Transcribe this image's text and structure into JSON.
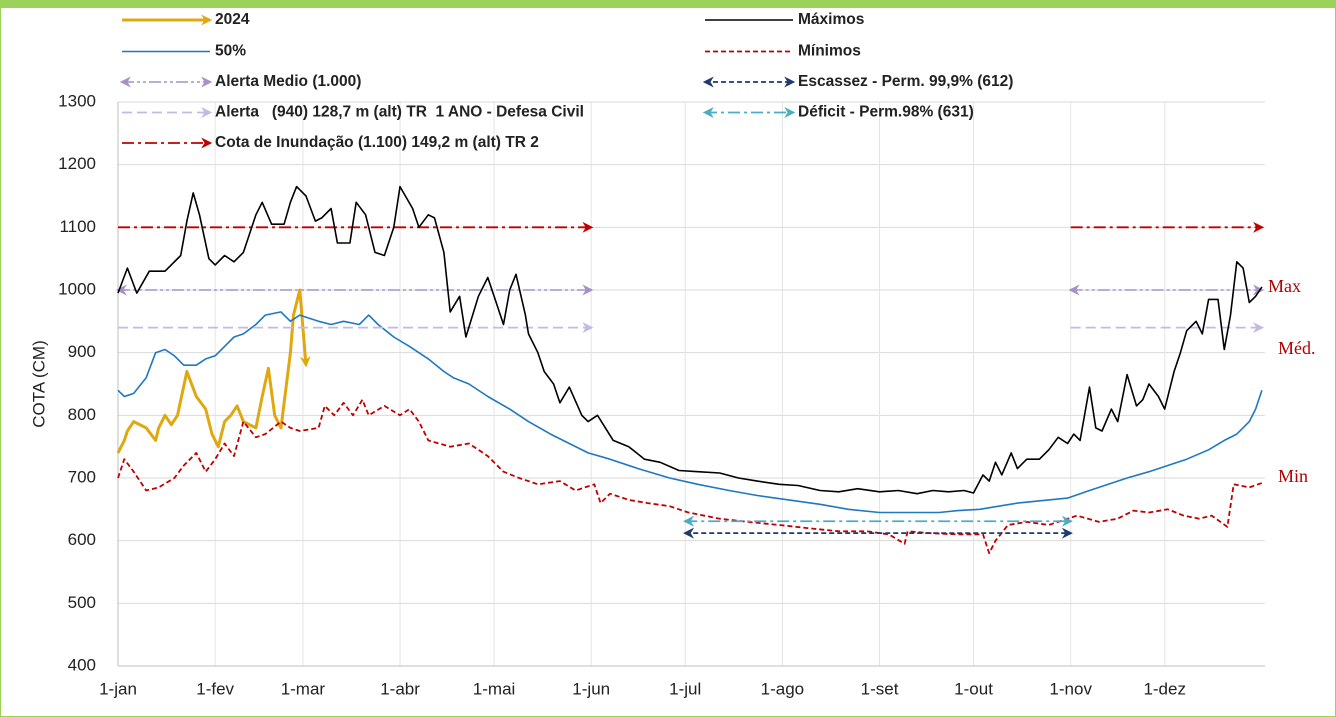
{
  "chart_data": {
    "type": "line",
    "ylabel": "COTA (CM)",
    "ylim": [
      400,
      1300
    ],
    "yticks": [
      400,
      500,
      600,
      700,
      800,
      900,
      1000,
      1100,
      1200,
      1300
    ],
    "xlim": [
      0,
      366
    ],
    "xticks": [
      {
        "value": 0,
        "label": "1-jan"
      },
      {
        "value": 31,
        "label": "1-fev"
      },
      {
        "value": 59,
        "label": "1-mar"
      },
      {
        "value": 90,
        "label": "1-abr"
      },
      {
        "value": 120,
        "label": "1-mai"
      },
      {
        "value": 151,
        "label": "1-jun"
      },
      {
        "value": 181,
        "label": "1-jul"
      },
      {
        "value": 212,
        "label": "1-ago"
      },
      {
        "value": 243,
        "label": "1-set"
      },
      {
        "value": 273,
        "label": "1-out"
      },
      {
        "value": 304,
        "label": "1-nov"
      },
      {
        "value": 334,
        "label": "1-dez"
      }
    ],
    "grid": true,
    "annotations": [
      "Max",
      "Méd.",
      "Min"
    ],
    "series": [
      {
        "name": "2024",
        "color": "#e0a810",
        "dash": "solid",
        "width": 3,
        "arrow": "end",
        "x": [
          0,
          2,
          3,
          5,
          9,
          12,
          13,
          15,
          17,
          19,
          22,
          25,
          28,
          30,
          32,
          34,
          36,
          38,
          40,
          44,
          46,
          48,
          50,
          52,
          55,
          56,
          58,
          60
        ],
        "values": [
          740,
          760,
          775,
          790,
          780,
          760,
          780,
          800,
          785,
          800,
          870,
          830,
          810,
          770,
          750,
          790,
          800,
          815,
          790,
          780,
          830,
          875,
          800,
          780,
          900,
          960,
          1000,
          880
        ]
      },
      {
        "name": "50%",
        "color": "#1f78c1",
        "dash": "solid",
        "width": 1.6,
        "x": [
          0,
          2,
          5,
          9,
          12,
          15,
          18,
          21,
          25,
          28,
          31,
          34,
          37,
          40,
          44,
          47,
          52,
          55,
          58,
          61,
          64,
          68,
          72,
          77,
          80,
          83,
          88,
          93,
          96,
          99,
          104,
          107,
          112,
          118,
          125,
          131,
          138,
          144,
          150,
          157,
          166,
          176,
          185,
          195,
          204,
          214,
          224,
          233,
          243,
          252,
          262,
          268,
          275,
          281,
          287,
          297,
          303,
          310,
          316,
          322,
          329,
          335,
          341,
          348,
          353,
          357,
          361,
          363,
          365
        ],
        "values": [
          840,
          830,
          835,
          860,
          900,
          905,
          895,
          880,
          880,
          890,
          895,
          910,
          925,
          930,
          945,
          960,
          965,
          950,
          960,
          955,
          950,
          945,
          950,
          945,
          960,
          945,
          925,
          910,
          900,
          890,
          870,
          860,
          850,
          830,
          810,
          790,
          770,
          755,
          740,
          730,
          715,
          700,
          690,
          680,
          672,
          665,
          658,
          650,
          645,
          645,
          645,
          648,
          650,
          655,
          660,
          665,
          668,
          680,
          690,
          700,
          710,
          720,
          730,
          745,
          760,
          770,
          790,
          810,
          840
        ]
      },
      {
        "name": "Alerta Medio (1.000)",
        "color": "#a590cc",
        "dash": "dashdotdot",
        "width": 1.6,
        "arrow": "both",
        "value": 1000,
        "segments": [
          [
            0,
            151
          ],
          [
            304,
            365
          ]
        ]
      },
      {
        "name": "Alerta   (940) 128,7 m (alt) TR  1 ANO - Defesa Civil",
        "color": "#c4b8e4",
        "dash": "longdash",
        "width": 1.8,
        "arrow": "end",
        "value": 940,
        "segments": [
          [
            0,
            151
          ],
          [
            304,
            365
          ]
        ]
      },
      {
        "name": "Cota de Inundação (1.100) 149,2 m (alt) TR 2",
        "color": "#c00000",
        "dash": "dashdot",
        "width": 1.8,
        "arrow": "end",
        "value": 1100,
        "segments": [
          [
            0,
            151
          ],
          [
            304,
            365
          ]
        ]
      },
      {
        "name": "Máximos",
        "color": "#000000",
        "dash": "solid",
        "width": 1.6,
        "x": [
          0,
          3,
          6,
          10,
          15,
          20,
          22,
          24,
          26,
          29,
          31,
          34,
          37,
          40,
          44,
          46,
          49,
          53,
          55,
          57,
          60,
          63,
          65,
          68,
          70,
          74,
          76,
          79,
          82,
          85,
          88,
          90,
          94,
          96,
          99,
          101,
          104,
          106,
          109,
          111,
          115,
          118,
          120,
          123,
          125,
          127,
          130,
          131,
          134,
          136,
          139,
          141,
          144,
          148,
          150,
          153,
          158,
          163,
          168,
          173,
          179,
          185,
          192,
          198,
          204,
          211,
          217,
          224,
          230,
          236,
          243,
          249,
          255,
          260,
          265,
          270,
          273,
          276,
          278,
          280,
          282,
          285,
          287,
          290,
          294,
          297,
          300,
          303,
          305,
          307,
          310,
          312,
          314,
          317,
          319,
          322,
          325,
          327,
          329,
          332,
          334,
          337,
          339,
          341,
          344,
          346,
          348,
          351,
          353,
          355,
          357,
          359,
          361,
          363,
          365
        ],
        "values": [
          995,
          1035,
          995,
          1030,
          1030,
          1055,
          1110,
          1155,
          1120,
          1050,
          1040,
          1055,
          1045,
          1060,
          1120,
          1140,
          1105,
          1105,
          1140,
          1165,
          1150,
          1110,
          1115,
          1130,
          1075,
          1075,
          1140,
          1120,
          1060,
          1055,
          1100,
          1165,
          1130,
          1100,
          1120,
          1115,
          1060,
          965,
          990,
          925,
          990,
          1020,
          990,
          945,
          1000,
          1025,
          960,
          930,
          900,
          870,
          850,
          820,
          845,
          800,
          790,
          800,
          760,
          750,
          730,
          725,
          712,
          710,
          708,
          700,
          695,
          690,
          688,
          680,
          678,
          683,
          678,
          680,
          675,
          680,
          678,
          680,
          676,
          705,
          695,
          725,
          705,
          740,
          715,
          730,
          730,
          745,
          765,
          755,
          770,
          760,
          845,
          780,
          775,
          810,
          790,
          865,
          815,
          825,
          850,
          830,
          810,
          870,
          900,
          935,
          950,
          930,
          985,
          985,
          905,
          960,
          1045,
          1035,
          980,
          990,
          1005
        ]
      },
      {
        "name": "Mínimos",
        "color": "#c00000",
        "dash": "dash",
        "width": 1.8,
        "x": [
          0,
          2,
          5,
          9,
          13,
          18,
          21,
          25,
          28,
          31,
          34,
          37,
          40,
          44,
          47,
          52,
          55,
          58,
          64,
          66,
          69,
          72,
          75,
          78,
          80,
          85,
          90,
          93,
          96,
          99,
          106,
          112,
          118,
          123,
          128,
          134,
          141,
          146,
          152,
          154,
          157,
          163,
          169,
          176,
          182,
          192,
          201,
          211,
          220,
          230,
          239,
          246,
          251,
          252,
          259,
          268,
          276,
          278,
          280,
          284,
          290,
          297,
          303,
          306,
          313,
          319,
          324,
          329,
          335,
          340,
          345,
          349,
          354,
          356,
          361,
          365
        ],
        "values": [
          700,
          730,
          710,
          680,
          685,
          700,
          720,
          740,
          710,
          730,
          755,
          735,
          790,
          765,
          770,
          790,
          780,
          775,
          780,
          815,
          800,
          820,
          800,
          825,
          800,
          815,
          800,
          810,
          790,
          760,
          750,
          755,
          735,
          710,
          700,
          690,
          695,
          680,
          690,
          660,
          675,
          665,
          660,
          655,
          645,
          635,
          630,
          625,
          620,
          615,
          615,
          610,
          595,
          615,
          612,
          610,
          610,
          580,
          600,
          625,
          630,
          625,
          635,
          640,
          630,
          635,
          648,
          645,
          650,
          640,
          635,
          640,
          622,
          690,
          685,
          692
        ]
      },
      {
        "name": "Escassez - Perm. 99,9% (612)",
        "color": "#1f3a6e",
        "dash": "dash",
        "width": 1.8,
        "arrow": "both",
        "value": 612,
        "segments": [
          [
            181,
            304
          ]
        ]
      },
      {
        "name": "Déficit - Perm.98% (631)",
        "color": "#4bacc6",
        "dash": "dashdot",
        "width": 1.8,
        "arrow": "both",
        "value": 631,
        "segments": [
          [
            181,
            304
          ]
        ]
      }
    ]
  }
}
